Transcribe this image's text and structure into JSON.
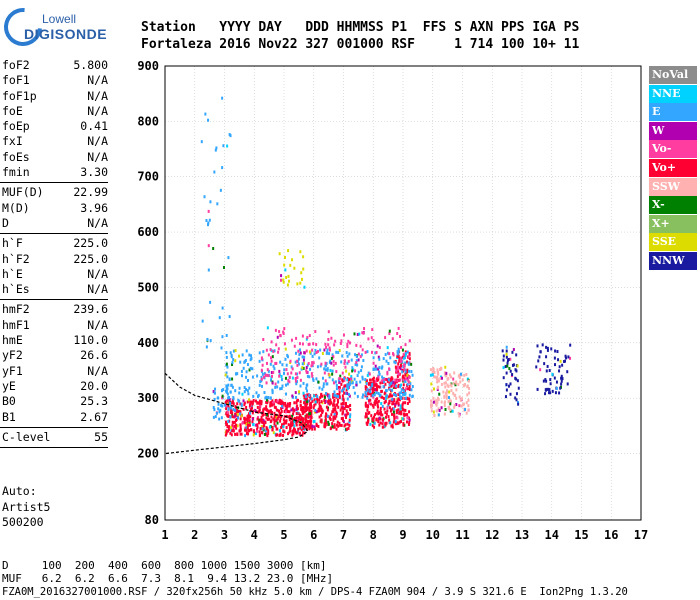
{
  "logo": {
    "line1": "Lowell",
    "line2": "DIGISONDE"
  },
  "header": {
    "row1": "Station   YYYY DAY   DDD HHMMSS P1  FFS S AXN PPS IGA PS",
    "row2": "Fortaleza 2016 Nov22 327 001000 RSF     1 714 100 10+ 11"
  },
  "params": [
    {
      "name": "foF2",
      "value": "5.800"
    },
    {
      "name": "foF1",
      "value": "N/A"
    },
    {
      "name": "foF1p",
      "value": "N/A"
    },
    {
      "name": "foE",
      "value": "N/A"
    },
    {
      "name": "foEp",
      "value": "0.41"
    },
    {
      "name": "fxI",
      "value": "N/A"
    },
    {
      "name": "foEs",
      "value": "N/A"
    },
    {
      "name": "fmin",
      "value": "3.30"
    },
    {
      "sep": true
    },
    {
      "name": "MUF(D)",
      "value": "22.99"
    },
    {
      "name": "M(D)",
      "value": "3.96"
    },
    {
      "name": "D",
      "value": "N/A"
    },
    {
      "sep": true
    },
    {
      "name": "h`F",
      "value": "225.0"
    },
    {
      "name": "h`F2",
      "value": "225.0"
    },
    {
      "name": "h`E",
      "value": "N/A"
    },
    {
      "name": "h`Es",
      "value": "N/A"
    },
    {
      "sep": true
    },
    {
      "name": "hmF2",
      "value": "239.6"
    },
    {
      "name": "hmF1",
      "value": "N/A"
    },
    {
      "name": "hmE",
      "value": "110.0"
    },
    {
      "name": "yF2",
      "value": "26.6"
    },
    {
      "name": "yF1",
      "value": "N/A"
    },
    {
      "name": "yE",
      "value": "20.0"
    },
    {
      "name": "B0",
      "value": "25.3"
    },
    {
      "name": "B1",
      "value": "2.67"
    },
    {
      "sep": true
    },
    {
      "name": "C-level",
      "value": "55"
    },
    {
      "sep": true
    }
  ],
  "auto": {
    "line1": "Auto:",
    "line2": "Artist5",
    "line3": "500200"
  },
  "legend": [
    {
      "label": "NoVal",
      "color": "#8c8c8c"
    },
    {
      "label": "NNE",
      "color": "#00d2ff"
    },
    {
      "label": "E",
      "color": "#33a6ff"
    },
    {
      "label": "W",
      "color": "#b000b0"
    },
    {
      "label": "Vo-",
      "color": "#ff3ca0"
    },
    {
      "label": "Vo+",
      "color": "#ff0032"
    },
    {
      "label": "SSW",
      "color": "#ffb0b0"
    },
    {
      "label": "X-",
      "color": "#008000"
    },
    {
      "label": "X+",
      "color": "#88c060"
    },
    {
      "label": "SSE",
      "color": "#dcdc00"
    },
    {
      "label": "NNW",
      "color": "#1a1aa0"
    }
  ],
  "bottom": {
    "line1": "D     100  200  400  600  800 1000 1500 3000 [km]",
    "line2": "MUF   6.2  6.2  6.6  7.3  8.1  9.4 13.2 23.0 [MHz]",
    "line3": "FZA0M_2016327001000.RSF / 320fx256h 50 kHz 5.0 km / DPS-4 FZA0M 904 / 3.9 S 321.6 E  Ion2Png 1.3.20"
  },
  "chart_data": {
    "type": "scatter",
    "xlabel": "",
    "ylabel": "",
    "xlim": [
      1,
      17
    ],
    "ylim": [
      80,
      900
    ],
    "x_ticks": [
      1,
      2,
      3,
      4,
      5,
      6,
      7,
      8,
      9,
      10,
      11,
      12,
      13,
      14,
      15,
      16,
      17
    ],
    "y_ticks": [
      80,
      200,
      300,
      400,
      500,
      600,
      700,
      800,
      900
    ],
    "grid": true,
    "regions": [
      {
        "f": [
          3.0,
          5.9
        ],
        "h": [
          235,
          300
        ],
        "density": 1.0,
        "color": "#ff0032"
      },
      {
        "f": [
          2.6,
          3.6
        ],
        "h": [
          260,
          320
        ],
        "density": 0.3,
        "color": "#33a6ff"
      },
      {
        "f": [
          5.6,
          6.8
        ],
        "h": [
          245,
          310
        ],
        "density": 0.9,
        "color": "#ff0032"
      },
      {
        "f": [
          6.8,
          7.2
        ],
        "h": [
          245,
          340
        ],
        "density": 0.8,
        "color": "#ff0032"
      },
      {
        "f": [
          7.7,
          8.7
        ],
        "h": [
          250,
          340
        ],
        "density": 0.9,
        "color": "#ff0032"
      },
      {
        "f": [
          8.7,
          9.2
        ],
        "h": [
          250,
          390
        ],
        "density": 0.8,
        "color": "#ff0032"
      },
      {
        "f": [
          3.0,
          9.3
        ],
        "h": [
          300,
          390
        ],
        "density": 0.25,
        "color": "#33a6ff"
      },
      {
        "f": [
          4.2,
          9.2
        ],
        "h": [
          330,
          430
        ],
        "density": 0.15,
        "color": "#ff3ca0"
      },
      {
        "f": [
          9.9,
          10.4
        ],
        "h": [
          270,
          360
        ],
        "density": 0.6,
        "color": "#ffb0b0"
      },
      {
        "f": [
          10.4,
          11.2
        ],
        "h": [
          270,
          350
        ],
        "density": 0.5,
        "color": "#ffb0b0"
      },
      {
        "f": [
          12.3,
          12.9
        ],
        "h": [
          290,
          400
        ],
        "density": 0.25,
        "color": "#1a1aa0"
      },
      {
        "f": [
          13.4,
          14.6
        ],
        "h": [
          310,
          400
        ],
        "density": 0.22,
        "color": "#1a1aa0"
      },
      {
        "f": [
          2.2,
          3.2
        ],
        "h": [
          380,
          850
        ],
        "density": 0.03,
        "color": "#33a6ff"
      },
      {
        "f": [
          4.8,
          5.7
        ],
        "h": [
          500,
          580
        ],
        "density": 0.12,
        "color": "#dcdc00"
      }
    ],
    "profile": [
      [
        1,
        345
      ],
      [
        1.5,
        320
      ],
      [
        2,
        305
      ],
      [
        3,
        290
      ],
      [
        4,
        275
      ],
      [
        5,
        268
      ],
      [
        5.6,
        255
      ],
      [
        5.8,
        240
      ],
      [
        5.5,
        230
      ],
      [
        5,
        225
      ],
      [
        4,
        218
      ],
      [
        3,
        212
      ],
      [
        2,
        206
      ],
      [
        1,
        200
      ]
    ]
  }
}
